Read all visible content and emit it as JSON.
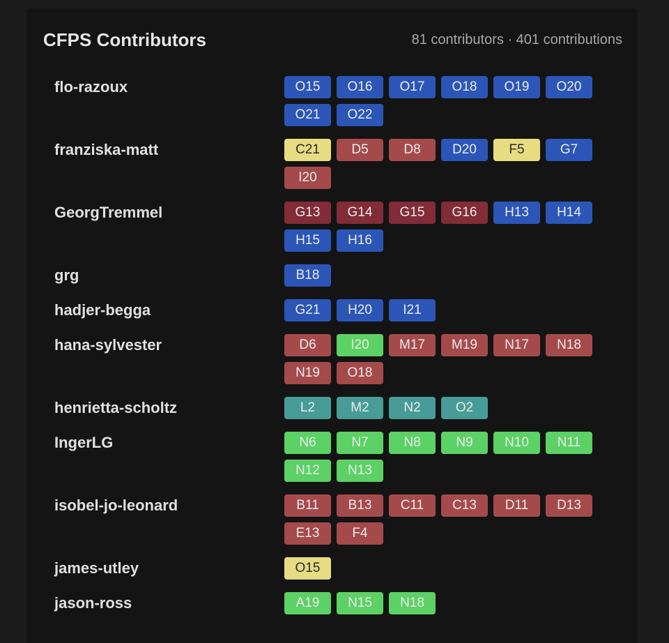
{
  "header": {
    "title": "CFPS Contributors",
    "stats": "81 contributors · 401 contributions"
  },
  "contributors": [
    {
      "name": "flo-razoux",
      "chips": [
        {
          "label": "O15",
          "color": "#2b56b8"
        },
        {
          "label": "O16",
          "color": "#2b56b8"
        },
        {
          "label": "O17",
          "color": "#2b56b8"
        },
        {
          "label": "O18",
          "color": "#2b56b8"
        },
        {
          "label": "O19",
          "color": "#2b56b8"
        },
        {
          "label": "O20",
          "color": "#2b56b8"
        },
        {
          "label": "O21",
          "color": "#2b56b8"
        },
        {
          "label": "O22",
          "color": "#2b56b8"
        }
      ]
    },
    {
      "name": "franziska-matt",
      "chips": [
        {
          "label": "C21",
          "color": "#e8dc82"
        },
        {
          "label": "D5",
          "color": "#a54a4b"
        },
        {
          "label": "D8",
          "color": "#a54a4b"
        },
        {
          "label": "D20",
          "color": "#2b56b8"
        },
        {
          "label": "F5",
          "color": "#e8dc82"
        },
        {
          "label": "G7",
          "color": "#2b56b8"
        },
        {
          "label": "I20",
          "color": "#a54a4b"
        }
      ]
    },
    {
      "name": "GeorgTremmel",
      "chips": [
        {
          "label": "G13",
          "color": "#812c37"
        },
        {
          "label": "G14",
          "color": "#812c37"
        },
        {
          "label": "G15",
          "color": "#812c37"
        },
        {
          "label": "G16",
          "color": "#812c37"
        },
        {
          "label": "H13",
          "color": "#2b56b8"
        },
        {
          "label": "H14",
          "color": "#2b56b8"
        },
        {
          "label": "H15",
          "color": "#2b56b8"
        },
        {
          "label": "H16",
          "color": "#2b56b8"
        }
      ]
    },
    {
      "name": "grg",
      "chips": [
        {
          "label": "B18",
          "color": "#2b56b8"
        }
      ]
    },
    {
      "name": "hadjer-begga",
      "chips": [
        {
          "label": "G21",
          "color": "#2b56b8"
        },
        {
          "label": "H20",
          "color": "#2b56b8"
        },
        {
          "label": "I21",
          "color": "#2b56b8"
        }
      ]
    },
    {
      "name": "hana-sylvester",
      "chips": [
        {
          "label": "D6",
          "color": "#a54a4b"
        },
        {
          "label": "I20",
          "color": "#5cd165"
        },
        {
          "label": "M17",
          "color": "#a54a4b"
        },
        {
          "label": "M19",
          "color": "#a54a4b"
        },
        {
          "label": "N17",
          "color": "#a54a4b"
        },
        {
          "label": "N18",
          "color": "#a54a4b"
        },
        {
          "label": "N19",
          "color": "#a54a4b"
        },
        {
          "label": "O18",
          "color": "#a54a4b"
        }
      ]
    },
    {
      "name": "henrietta-scholtz",
      "chips": [
        {
          "label": "L2",
          "color": "#489c97"
        },
        {
          "label": "M2",
          "color": "#489c97"
        },
        {
          "label": "N2",
          "color": "#489c97"
        },
        {
          "label": "O2",
          "color": "#489c97"
        }
      ]
    },
    {
      "name": "IngerLG",
      "chips": [
        {
          "label": "N6",
          "color": "#5cd165"
        },
        {
          "label": "N7",
          "color": "#5cd165"
        },
        {
          "label": "N8",
          "color": "#5cd165"
        },
        {
          "label": "N9",
          "color": "#5cd165"
        },
        {
          "label": "N10",
          "color": "#5cd165"
        },
        {
          "label": "N11",
          "color": "#5cd165"
        },
        {
          "label": "N12",
          "color": "#5cd165"
        },
        {
          "label": "N13",
          "color": "#5cd165"
        }
      ]
    },
    {
      "name": "isobel-jo-leonard",
      "chips": [
        {
          "label": "B11",
          "color": "#a54a4b"
        },
        {
          "label": "B13",
          "color": "#a54a4b"
        },
        {
          "label": "C11",
          "color": "#a54a4b"
        },
        {
          "label": "C13",
          "color": "#a54a4b"
        },
        {
          "label": "D11",
          "color": "#a54a4b"
        },
        {
          "label": "D13",
          "color": "#a54a4b"
        },
        {
          "label": "E13",
          "color": "#a54a4b"
        },
        {
          "label": "F4",
          "color": "#a54a4b"
        }
      ]
    },
    {
      "name": "james-utley",
      "chips": [
        {
          "label": "O15",
          "color": "#e8dc82"
        }
      ]
    },
    {
      "name": "jason-ross",
      "chips": [
        {
          "label": "A19",
          "color": "#5cd165"
        },
        {
          "label": "N15",
          "color": "#5cd165"
        },
        {
          "label": "N18",
          "color": "#5cd165"
        }
      ]
    }
  ]
}
